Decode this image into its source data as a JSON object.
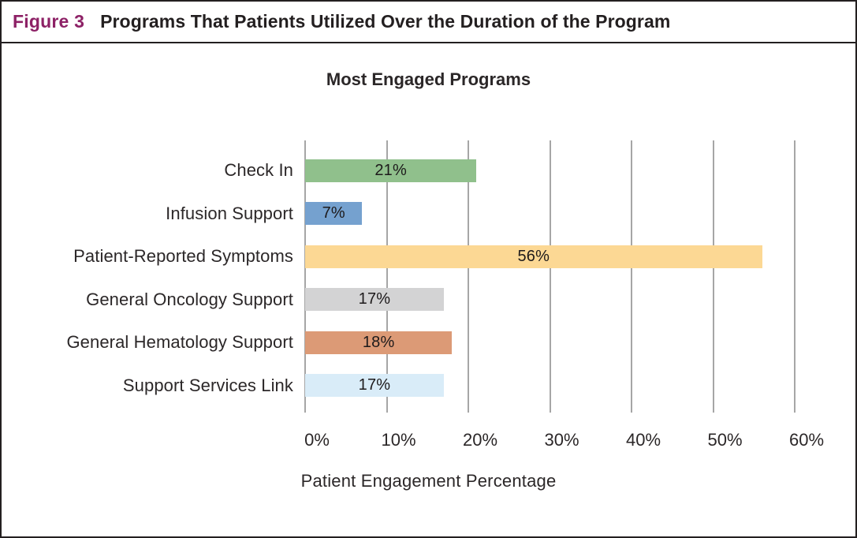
{
  "figure": {
    "label": "Figure 3",
    "title": "Programs That Patients Utilized Over the Duration of the Program",
    "label_color": "#8d2166"
  },
  "chart_data": {
    "type": "bar",
    "orientation": "horizontal",
    "title": "Most Engaged Programs",
    "categories": [
      "Check In",
      "Infusion Support",
      "Patient-Reported Symptoms",
      "General Oncology Support",
      "General Hematology Support",
      "Support Services Link"
    ],
    "values": [
      21,
      7,
      56,
      17,
      18,
      17
    ],
    "value_labels": [
      "21%",
      "7%",
      "56%",
      "17%",
      "18%",
      "17%"
    ],
    "bar_colors": [
      "#90c08c",
      "#75a1cf",
      "#fcd894",
      "#d3d3d4",
      "#dc9a76",
      "#d9ecf8"
    ],
    "xlabel": "Patient Engagement Percentage",
    "x_ticks": [
      "0%",
      "10%",
      "20%",
      "30%",
      "40%",
      "50%",
      "60%"
    ],
    "xlim": [
      0,
      60
    ],
    "grid": "vertical",
    "gridline_color": "#a6a6a6",
    "legend": "none"
  }
}
